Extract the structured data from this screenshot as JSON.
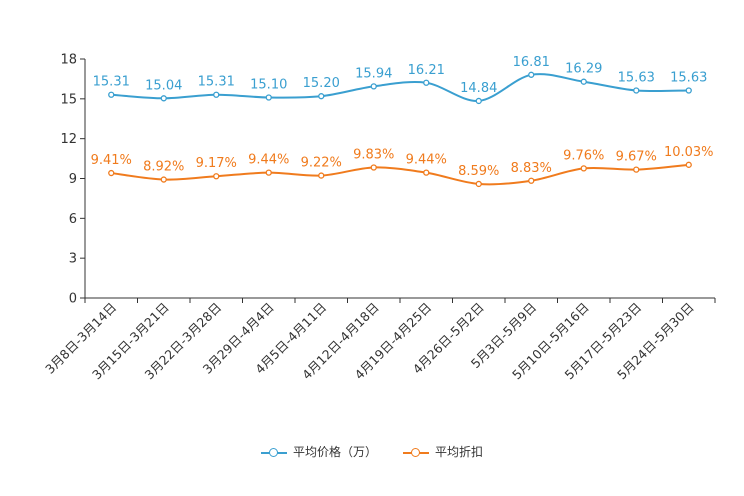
{
  "chart_data": {
    "type": "line",
    "title": "",
    "xlabel": "",
    "ylabel": "",
    "ylim": [
      0,
      18
    ],
    "yticks": [
      0,
      3,
      6,
      9,
      12,
      15,
      18
    ],
    "categories": [
      "3月8日-3月14日",
      "3月15日-3月21日",
      "3月22日-3月28日",
      "3月29日-4月4日",
      "4月5日-4月11日",
      "4月12日-4月18日",
      "4月19日-4月25日",
      "4月26日-5月2日",
      "5月3日-5月9日",
      "5月10日-5月16日",
      "5月17日-5月23日",
      "5月24日-5月30日"
    ],
    "series": [
      {
        "name": "平均价格（万）",
        "color": "#3a9fd0",
        "values": [
          15.31,
          15.04,
          15.31,
          15.1,
          15.2,
          15.94,
          16.21,
          14.84,
          16.81,
          16.29,
          15.63,
          15.63
        ],
        "labels": [
          "15.31",
          "15.04",
          "15.31",
          "15.10",
          "15.20",
          "15.94",
          "16.21",
          "14.84",
          "16.81",
          "16.29",
          "15.63",
          "15.63"
        ]
      },
      {
        "name": "平均折扣",
        "color": "#f07b1d",
        "values": [
          9.41,
          8.92,
          9.17,
          9.44,
          9.22,
          9.83,
          9.44,
          8.59,
          8.83,
          9.76,
          9.67,
          10.03
        ],
        "labels": [
          "9.41%",
          "8.92%",
          "9.17%",
          "9.44%",
          "9.22%",
          "9.83%",
          "9.44%",
          "8.59%",
          "8.83%",
          "9.76%",
          "9.67%",
          "10.03%"
        ]
      }
    ],
    "legend": "bottom-center",
    "grid": false
  }
}
